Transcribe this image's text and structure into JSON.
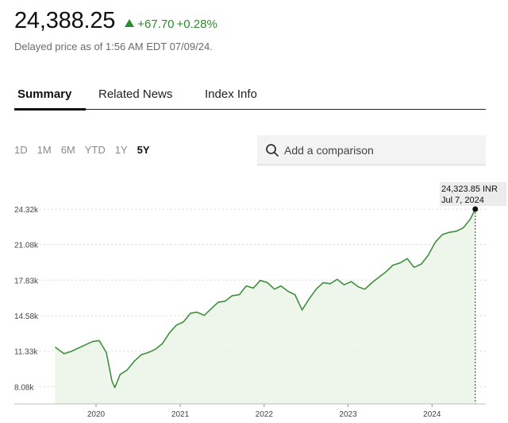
{
  "quote": {
    "price": "24,388.25",
    "change": "+67.70",
    "change_pct": "+0.28%",
    "delayed_text": "Delayed price as of 1:56 AM EDT 07/09/24.",
    "up_color": "#2e8b2e"
  },
  "tabs": [
    {
      "label": "Summary",
      "active": true
    },
    {
      "label": "Related News",
      "active": false
    },
    {
      "label": "Index Info",
      "active": false
    }
  ],
  "ranges": [
    {
      "label": "1D",
      "active": false
    },
    {
      "label": "1M",
      "active": false
    },
    {
      "label": "6M",
      "active": false
    },
    {
      "label": "YTD",
      "active": false
    },
    {
      "label": "1Y",
      "active": false
    },
    {
      "label": "5Y",
      "active": true
    }
  ],
  "compare": {
    "placeholder": "Add a comparison",
    "icon": "search-icon"
  },
  "chart_data": {
    "type": "area",
    "line_color": "#3f8f3f",
    "fill_color": "#eaf4e6",
    "y_ticks": [
      8080,
      11330,
      14580,
      17830,
      21080,
      24320
    ],
    "y_tick_labels": [
      "8.08k",
      "11.33k",
      "14.58k",
      "17.83k",
      "21.08k",
      "24.32k"
    ],
    "ylim": [
      6500,
      26000
    ],
    "x_ticks": [
      "2020-01-01",
      "2021-01-01",
      "2022-01-01",
      "2023-01-01",
      "2024-01-01"
    ],
    "x_tick_labels": [
      "2020",
      "2021",
      "2022",
      "2023",
      "2024"
    ],
    "xlim": [
      "2019-05-01",
      "2024-09-01"
    ],
    "grid": true,
    "tooltip": {
      "value": "24,323.85 INR",
      "date": "Jul 7, 2024"
    },
    "x": [
      "2019-07-07",
      "2019-08-15",
      "2019-09-15",
      "2019-10-15",
      "2019-11-15",
      "2019-12-15",
      "2020-01-15",
      "2020-02-15",
      "2020-02-28",
      "2020-03-10",
      "2020-03-23",
      "2020-04-15",
      "2020-05-15",
      "2020-06-15",
      "2020-07-15",
      "2020-08-15",
      "2020-09-15",
      "2020-10-15",
      "2020-11-15",
      "2020-12-15",
      "2021-01-15",
      "2021-02-15",
      "2021-03-15",
      "2021-04-15",
      "2021-05-15",
      "2021-06-15",
      "2021-07-15",
      "2021-08-15",
      "2021-09-15",
      "2021-10-15",
      "2021-11-15",
      "2021-12-15",
      "2022-01-15",
      "2022-02-15",
      "2022-03-15",
      "2022-04-15",
      "2022-05-15",
      "2022-06-15",
      "2022-07-15",
      "2022-08-15",
      "2022-09-15",
      "2022-10-15",
      "2022-11-15",
      "2022-12-15",
      "2023-01-15",
      "2023-02-15",
      "2023-03-15",
      "2023-04-15",
      "2023-05-15",
      "2023-06-15",
      "2023-07-15",
      "2023-08-15",
      "2023-09-15",
      "2023-10-15",
      "2023-11-15",
      "2023-12-15",
      "2024-01-15",
      "2024-02-15",
      "2024-03-15",
      "2024-04-15",
      "2024-05-15",
      "2024-06-15",
      "2024-07-07"
    ],
    "values": [
      11700,
      11100,
      11300,
      11600,
      11900,
      12200,
      12300,
      11200,
      9800,
      8600,
      8000,
      9200,
      9600,
      10400,
      11000,
      11200,
      11500,
      12000,
      13000,
      13700,
      14000,
      14800,
      14900,
      14600,
      15200,
      15800,
      15900,
      16400,
      16500,
      17300,
      17100,
      17800,
      17600,
      17000,
      17300,
      16800,
      16500,
      15100,
      16100,
      17000,
      17600,
      17500,
      17900,
      17400,
      17700,
      17200,
      17000,
      17600,
      18100,
      18600,
      19200,
      19400,
      19800,
      19000,
      19300,
      20100,
      21300,
      22000,
      22200,
      22300,
      22600,
      23400,
      24323.85
    ]
  }
}
